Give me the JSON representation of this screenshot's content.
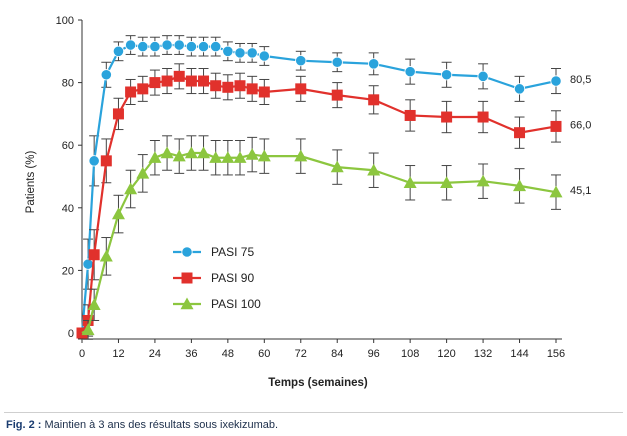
{
  "chart_data": {
    "type": "line",
    "xlabel": "Temps (semaines)",
    "ylabel": "Patients (%)",
    "xlim": [
      0,
      156
    ],
    "ylim": [
      0,
      100
    ],
    "x_ticks": [
      0,
      12,
      24,
      36,
      48,
      60,
      72,
      84,
      96,
      108,
      120,
      132,
      144,
      156
    ],
    "y_ticks": [
      0,
      20,
      40,
      60,
      80,
      100
    ],
    "legend_position": "middle-left",
    "grid": false,
    "series": [
      {
        "name": "PASI 75",
        "color": "#2aa3dc",
        "marker": "circle",
        "end_label": "80,5",
        "x": [
          0,
          2,
          4,
          8,
          12,
          16,
          20,
          24,
          28,
          32,
          36,
          40,
          44,
          48,
          52,
          56,
          60,
          72,
          84,
          96,
          108,
          120,
          132,
          144,
          156
        ],
        "values": [
          0,
          22,
          55,
          82.5,
          90,
          92,
          91.5,
          91.5,
          92,
          92,
          91.5,
          91.5,
          91.5,
          90,
          89.5,
          89.5,
          88.5,
          87,
          86.5,
          86,
          83.5,
          82.5,
          82,
          78,
          80.5
        ],
        "error": [
          0,
          8,
          8,
          4,
          3,
          3,
          3,
          3,
          3,
          3,
          3,
          3,
          3,
          3,
          3,
          3,
          3,
          3,
          3,
          3.5,
          4,
          4,
          4,
          4,
          4
        ]
      },
      {
        "name": "PASI 90",
        "color": "#e1312c",
        "marker": "square",
        "end_label": "66,0",
        "x": [
          0,
          2,
          4,
          8,
          12,
          16,
          20,
          24,
          28,
          32,
          36,
          40,
          44,
          48,
          52,
          56,
          60,
          72,
          84,
          96,
          108,
          120,
          132,
          144,
          156
        ],
        "values": [
          0,
          4,
          25,
          55,
          70,
          77,
          78,
          80,
          80.5,
          82,
          80.5,
          80.5,
          79,
          78.5,
          79,
          78,
          77,
          78,
          76,
          74.5,
          69.5,
          69,
          69,
          64,
          66
        ],
        "error": [
          0,
          5,
          8,
          7,
          5,
          4,
          4,
          4,
          4,
          4,
          4,
          4,
          4,
          4,
          4,
          4,
          4,
          4,
          4,
          4.5,
          5,
          5,
          5,
          5,
          5
        ]
      },
      {
        "name": "PASI 100",
        "color": "#8cc63f",
        "marker": "triangle",
        "end_label": "45,1",
        "x": [
          0,
          2,
          4,
          8,
          12,
          16,
          20,
          24,
          28,
          32,
          36,
          40,
          44,
          48,
          52,
          56,
          60,
          72,
          84,
          96,
          108,
          120,
          132,
          144,
          156
        ],
        "values": [
          0,
          1,
          9,
          24.5,
          38,
          46,
          51,
          56,
          57.5,
          56.5,
          57.5,
          57.5,
          56,
          56,
          56,
          57,
          56.5,
          56.5,
          53,
          52,
          48,
          48,
          48.5,
          47,
          45
        ],
        "error": [
          0,
          3,
          5,
          6,
          6,
          6,
          6,
          5.5,
          5.5,
          5.5,
          5.5,
          5.5,
          5.5,
          5.5,
          5.5,
          5.5,
          5.5,
          5.5,
          5.5,
          5.5,
          5.5,
          5.5,
          5.5,
          5.5,
          5.5
        ]
      }
    ]
  },
  "caption": {
    "label": "Fig. 2 :",
    "text": " Maintien à 3 ans des résultats sous ixekizumab."
  }
}
